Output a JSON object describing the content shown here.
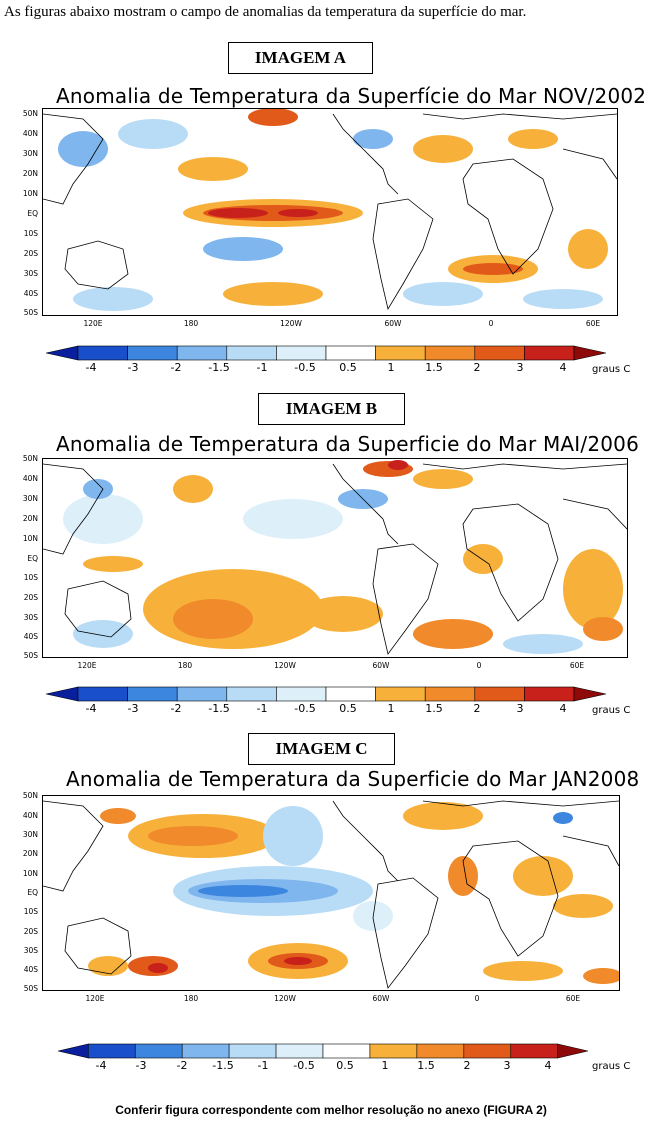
{
  "intro": "As figuras abaixo mostram o campo de anomalias da temperatura da superfície do mar.",
  "footer": "Conferir figura correspondente com melhor resolução no anexo (FIGURA 2)",
  "lat_labels": [
    "50N",
    "40N",
    "30N",
    "20N",
    "10N",
    "EQ",
    "10S",
    "20S",
    "30S",
    "40S",
    "50S"
  ],
  "lon_labels": [
    "120E",
    "180",
    "120W",
    "60W",
    "0",
    "60E"
  ],
  "colorbar": {
    "labels": [
      "-4",
      "-3",
      "-2",
      "-1.5",
      "-1",
      "-0.5",
      "0.5",
      "1",
      "1.5",
      "2",
      "3",
      "4"
    ],
    "units": "graus C",
    "colors": [
      "#0a1f9e",
      "#1a4fcc",
      "#3d86e0",
      "#7fb6ee",
      "#b8dcf6",
      "#ddf0fa",
      "#ffffff",
      "#f7b13a",
      "#f08a2a",
      "#e25a1a",
      "#c8201a",
      "#8e0a0a"
    ]
  },
  "panels": [
    {
      "label": "IMAGEM  A",
      "title": "Anomalia de Temperatura da Superfície do Mar NOV/2002"
    },
    {
      "label": "IMAGEM  B",
      "title": "Anomalia de Temperatura da Superficie do Mar MAI/2006"
    },
    {
      "label": "IMAGEM  C",
      "title": "Anomalia de Temperatura da Superficie do Mar JAN2008"
    }
  ]
}
